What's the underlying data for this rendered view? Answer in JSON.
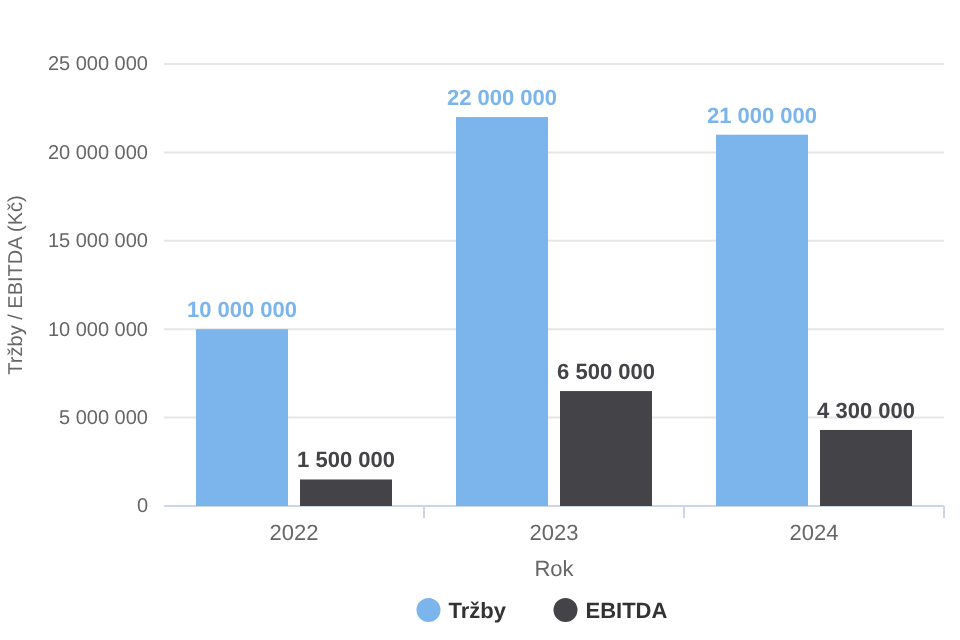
{
  "chart_data": {
    "type": "bar",
    "xlabel": "Rok",
    "ylabel": "Tržby / EBITDA (Kč)",
    "categories": [
      "2022",
      "2023",
      "2024"
    ],
    "series": [
      {
        "name": "Tržby",
        "color": "#7cb5ec",
        "values": [
          10000000,
          22000000,
          21000000
        ],
        "value_labels": [
          "10 000 000",
          "22 000 000",
          "21 000 000"
        ]
      },
      {
        "name": "EBITDA",
        "color": "#434348",
        "values": [
          1500000,
          6500000,
          4300000
        ],
        "value_labels": [
          "1 500 000",
          "6 500 000",
          "4 300 000"
        ]
      }
    ],
    "ylim": [
      0,
      25000000
    ],
    "yticks": [
      {
        "value": 0,
        "label": "0"
      },
      {
        "value": 5000000,
        "label": "5 000 000"
      },
      {
        "value": 10000000,
        "label": "10 000 000"
      },
      {
        "value": 15000000,
        "label": "15 000 000"
      },
      {
        "value": 20000000,
        "label": "20 000 000"
      },
      {
        "value": 25000000,
        "label": "25 000 000"
      }
    ],
    "grid": "y",
    "legend": "bottom"
  }
}
